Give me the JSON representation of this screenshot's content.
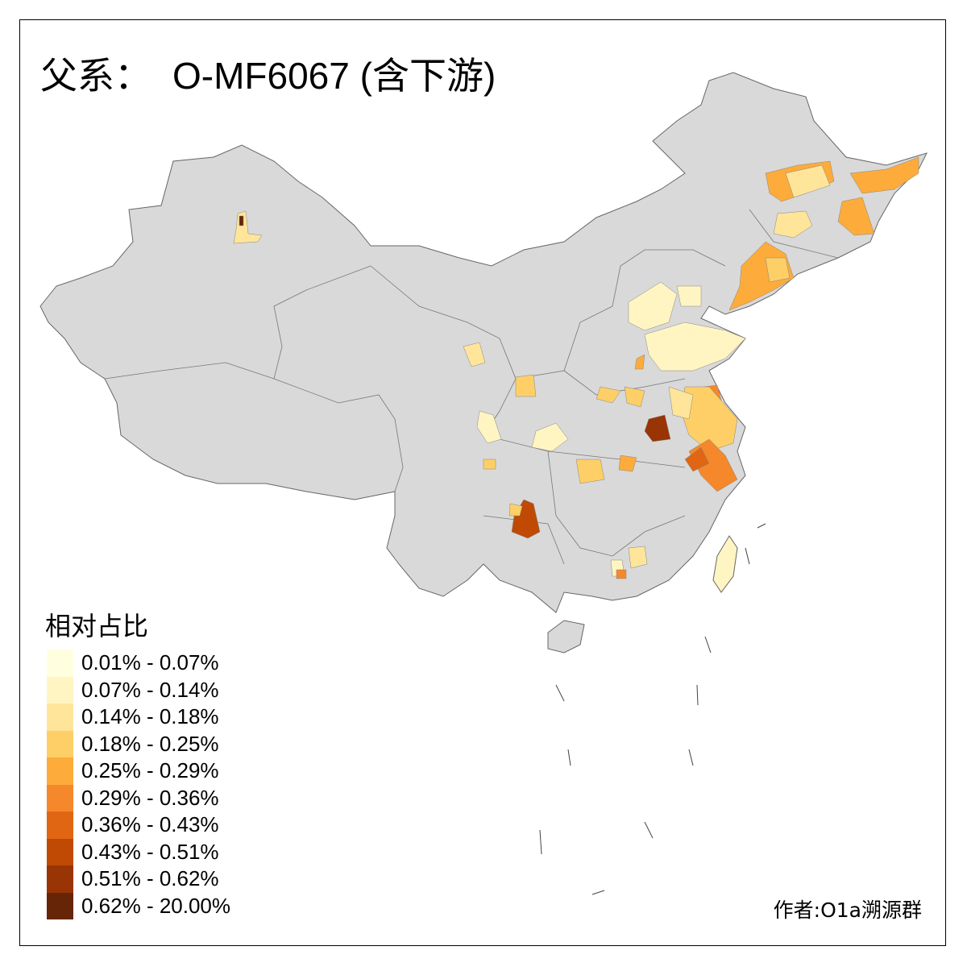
{
  "title": {
    "prefix": "父系：",
    "haplogroup": "O-MF6067 (含下游)"
  },
  "legend": {
    "title": "相对占比",
    "items": [
      {
        "label": "0.01% - 0.07%",
        "color": "#FFFFE0"
      },
      {
        "label": "0.07% - 0.14%",
        "color": "#FFF5C2"
      },
      {
        "label": "0.14% - 0.18%",
        "color": "#FEE59A"
      },
      {
        "label": "0.18% - 0.25%",
        "color": "#FECF66"
      },
      {
        "label": "0.25% - 0.29%",
        "color": "#FDAB3A"
      },
      {
        "label": "0.29% - 0.36%",
        "color": "#F5882A"
      },
      {
        "label": "0.36% - 0.43%",
        "color": "#E06614"
      },
      {
        "label": "0.43% - 0.51%",
        "color": "#C04A04"
      },
      {
        "label": "0.51% - 0.62%",
        "color": "#993404"
      },
      {
        "label": "0.62% - 20.00%",
        "color": "#662506"
      }
    ]
  },
  "map": {
    "base_color": "#D9D9D9",
    "border_color": "#666666"
  },
  "credit": "作者:O1a溯源群"
}
